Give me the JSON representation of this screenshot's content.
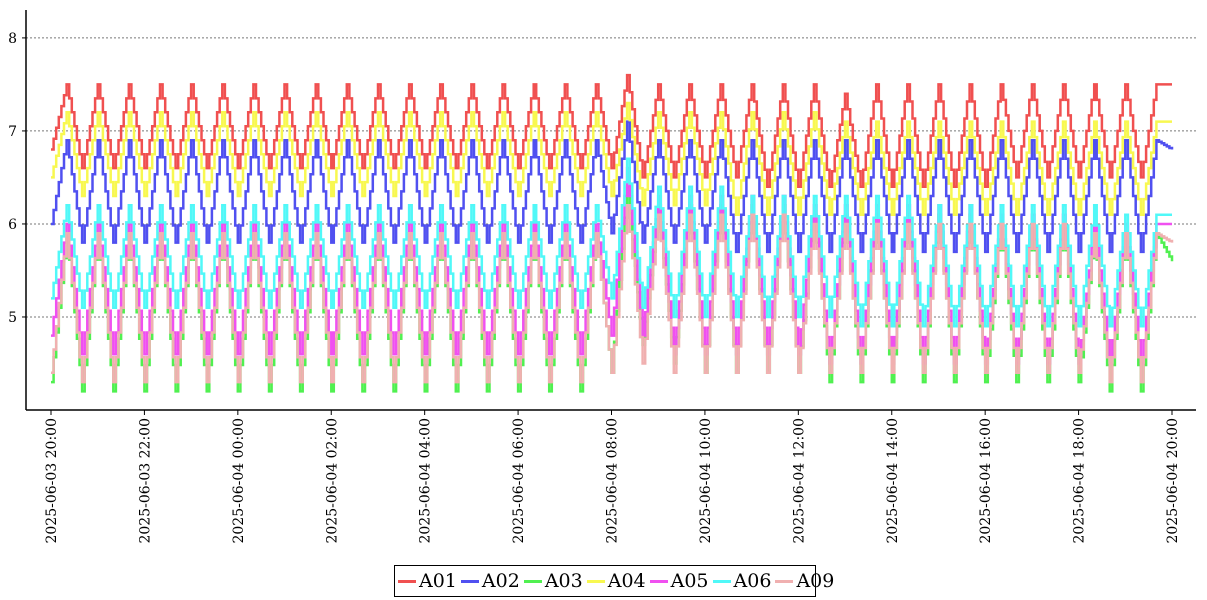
{
  "chart_data": {
    "type": "line",
    "title": "",
    "xlabel": "",
    "ylabel": "",
    "x_range": [
      "2025-06-03 20:00",
      "2025-06-04 20:00"
    ],
    "x_ticks": [
      "2025-06-03 20:00",
      "2025-06-03 22:00",
      "2025-06-04 00:00",
      "2025-06-04 02:00",
      "2025-06-04 04:00",
      "2025-06-04 06:00",
      "2025-06-04 08:00",
      "2025-06-04 10:00",
      "2025-06-04 12:00",
      "2025-06-04 14:00",
      "2025-06-04 16:00",
      "2025-06-04 18:00",
      "2025-06-04 20:00"
    ],
    "y_ticks": [
      "5",
      "6",
      "7",
      "8"
    ],
    "ylim": [
      4.0,
      8.3
    ],
    "grid": "horizontal-dotted",
    "legend_position": "bottom-center",
    "interval_minutes": 20,
    "note_shape": "periodic step waveform, period about 40 minutes; values listed are sampled every 20 minutes (alternating trough/peak)",
    "series": [
      {
        "name": "A01",
        "color": "#f05050",
        "values": [
          6.8,
          7.5,
          6.6,
          7.5,
          6.6,
          7.5,
          6.6,
          7.5,
          6.6,
          7.5,
          6.6,
          7.5,
          6.6,
          7.5,
          6.6,
          7.5,
          6.6,
          7.5,
          6.6,
          7.5,
          6.6,
          7.5,
          6.6,
          7.5,
          6.6,
          7.5,
          6.6,
          7.5,
          6.6,
          7.5,
          6.6,
          7.5,
          6.6,
          7.5,
          6.6,
          7.5,
          6.6,
          7.6,
          6.5,
          7.5,
          6.5,
          7.5,
          6.5,
          7.5,
          6.5,
          7.5,
          6.4,
          7.5,
          6.4,
          7.5,
          6.4,
          7.4,
          6.4,
          7.5,
          6.4,
          7.5,
          6.4,
          7.5,
          6.4,
          7.5,
          6.4,
          7.5,
          6.5,
          7.5,
          6.5,
          7.5,
          6.5,
          7.5,
          6.5,
          7.5,
          6.5,
          7.5,
          7.5
        ]
      },
      {
        "name": "A02",
        "color": "#5050f0",
        "values": [
          6.0,
          6.9,
          5.8,
          6.9,
          5.8,
          6.9,
          5.8,
          6.9,
          5.8,
          6.9,
          5.8,
          6.9,
          5.8,
          6.9,
          5.8,
          6.9,
          5.8,
          6.9,
          5.8,
          6.9,
          5.8,
          6.9,
          5.8,
          6.9,
          5.8,
          6.9,
          5.8,
          6.9,
          5.8,
          6.9,
          5.8,
          6.9,
          5.8,
          6.9,
          5.8,
          6.9,
          5.9,
          7.1,
          5.8,
          6.9,
          5.8,
          6.9,
          5.8,
          6.9,
          5.7,
          6.9,
          5.7,
          6.9,
          5.7,
          6.9,
          5.7,
          6.9,
          5.7,
          6.9,
          5.7,
          6.9,
          5.7,
          6.9,
          5.7,
          6.9,
          5.7,
          6.9,
          5.7,
          6.9,
          5.7,
          6.9,
          5.7,
          6.9,
          5.7,
          6.9,
          5.7,
          6.9,
          6.8
        ]
      },
      {
        "name": "A03",
        "color": "#50f050",
        "values": [
          4.3,
          5.9,
          4.2,
          5.9,
          4.2,
          5.9,
          4.2,
          5.9,
          4.2,
          5.9,
          4.2,
          5.9,
          4.2,
          5.9,
          4.2,
          5.9,
          4.2,
          5.9,
          4.2,
          5.9,
          4.2,
          5.9,
          4.2,
          5.9,
          4.2,
          5.9,
          4.2,
          5.9,
          4.2,
          5.9,
          4.2,
          5.9,
          4.2,
          5.9,
          4.2,
          5.9,
          4.4,
          6.4,
          4.7,
          6.2,
          4.5,
          6.2,
          4.4,
          6.2,
          4.4,
          6.2,
          4.4,
          6.2,
          4.4,
          6.1,
          4.3,
          6.1,
          4.3,
          6.1,
          4.3,
          6.1,
          4.3,
          6.1,
          4.3,
          6.1,
          4.3,
          6.0,
          4.3,
          6.0,
          4.3,
          6.0,
          4.3,
          5.9,
          4.2,
          5.9,
          4.2,
          5.9,
          5.6
        ]
      },
      {
        "name": "A04",
        "color": "#f8f850",
        "values": [
          6.5,
          7.2,
          6.3,
          7.2,
          6.3,
          7.2,
          6.3,
          7.2,
          6.3,
          7.2,
          6.3,
          7.2,
          6.3,
          7.2,
          6.3,
          7.2,
          6.3,
          7.2,
          6.3,
          7.2,
          6.3,
          7.2,
          6.3,
          7.2,
          6.3,
          7.2,
          6.3,
          7.2,
          6.3,
          7.2,
          6.3,
          7.2,
          6.3,
          7.2,
          6.3,
          7.2,
          6.3,
          7.3,
          6.2,
          7.2,
          6.2,
          7.2,
          6.2,
          7.2,
          6.1,
          7.2,
          6.1,
          7.2,
          6.1,
          7.2,
          6.1,
          7.1,
          6.1,
          7.1,
          6.1,
          7.1,
          6.1,
          7.1,
          6.1,
          7.1,
          6.1,
          7.1,
          6.1,
          7.1,
          6.1,
          7.1,
          6.1,
          7.1,
          6.1,
          7.1,
          6.1,
          7.1,
          7.1
        ]
      },
      {
        "name": "A05",
        "color": "#f050f0",
        "values": [
          4.8,
          6.0,
          4.6,
          6.0,
          4.6,
          6.0,
          4.6,
          6.0,
          4.6,
          6.0,
          4.6,
          6.0,
          4.6,
          6.0,
          4.6,
          6.0,
          4.6,
          6.0,
          4.6,
          6.0,
          4.6,
          6.0,
          4.6,
          6.0,
          4.6,
          6.0,
          4.6,
          6.0,
          4.6,
          6.0,
          4.6,
          6.0,
          4.6,
          6.0,
          4.6,
          6.0,
          4.8,
          6.6,
          4.8,
          6.3,
          4.6,
          6.3,
          4.6,
          6.3,
          4.6,
          6.3,
          4.6,
          6.3,
          4.6,
          6.2,
          4.5,
          6.2,
          4.5,
          6.2,
          4.5,
          6.2,
          4.5,
          6.2,
          4.5,
          6.2,
          4.5,
          6.1,
          4.5,
          6.1,
          4.5,
          6.1,
          4.5,
          6.0,
          4.5,
          6.0,
          4.5,
          6.0,
          6.0
        ]
      },
      {
        "name": "A06",
        "color": "#50f8f8",
        "values": [
          5.2,
          6.2,
          5.1,
          6.2,
          5.1,
          6.2,
          5.1,
          6.2,
          5.1,
          6.2,
          5.1,
          6.2,
          5.1,
          6.2,
          5.1,
          6.2,
          5.1,
          6.2,
          5.1,
          6.2,
          5.1,
          6.2,
          5.1,
          6.2,
          5.1,
          6.2,
          5.1,
          6.2,
          5.1,
          6.2,
          5.1,
          6.2,
          5.1,
          6.2,
          5.1,
          6.2,
          5.2,
          6.7,
          5.1,
          6.4,
          5.0,
          6.4,
          5.0,
          6.4,
          5.0,
          6.3,
          5.0,
          6.3,
          5.0,
          6.3,
          5.0,
          6.3,
          4.9,
          6.3,
          4.9,
          6.3,
          4.9,
          6.2,
          4.9,
          6.2,
          4.9,
          6.2,
          4.9,
          6.2,
          4.9,
          6.2,
          4.9,
          6.2,
          4.9,
          6.1,
          4.9,
          6.1,
          6.1
        ]
      },
      {
        "name": "A09",
        "color": "#f0b0b0",
        "values": [
          4.4,
          5.9,
          4.3,
          5.9,
          4.3,
          5.9,
          4.3,
          5.9,
          4.3,
          5.9,
          4.3,
          5.9,
          4.3,
          5.9,
          4.3,
          5.9,
          4.3,
          5.9,
          4.3,
          5.9,
          4.3,
          5.9,
          4.3,
          5.9,
          4.3,
          5.9,
          4.3,
          5.9,
          4.3,
          5.9,
          4.3,
          5.9,
          4.3,
          5.9,
          4.3,
          5.9,
          4.4,
          6.2,
          4.5,
          6.1,
          4.4,
          6.1,
          4.4,
          6.1,
          4.4,
          6.1,
          4.4,
          6.1,
          4.4,
          6.0,
          4.4,
          6.0,
          4.4,
          6.0,
          4.4,
          6.0,
          4.4,
          6.0,
          4.4,
          6.0,
          4.4,
          6.0,
          4.4,
          6.0,
          4.4,
          6.0,
          4.4,
          5.9,
          4.3,
          5.9,
          4.3,
          5.9,
          5.8
        ]
      }
    ]
  }
}
